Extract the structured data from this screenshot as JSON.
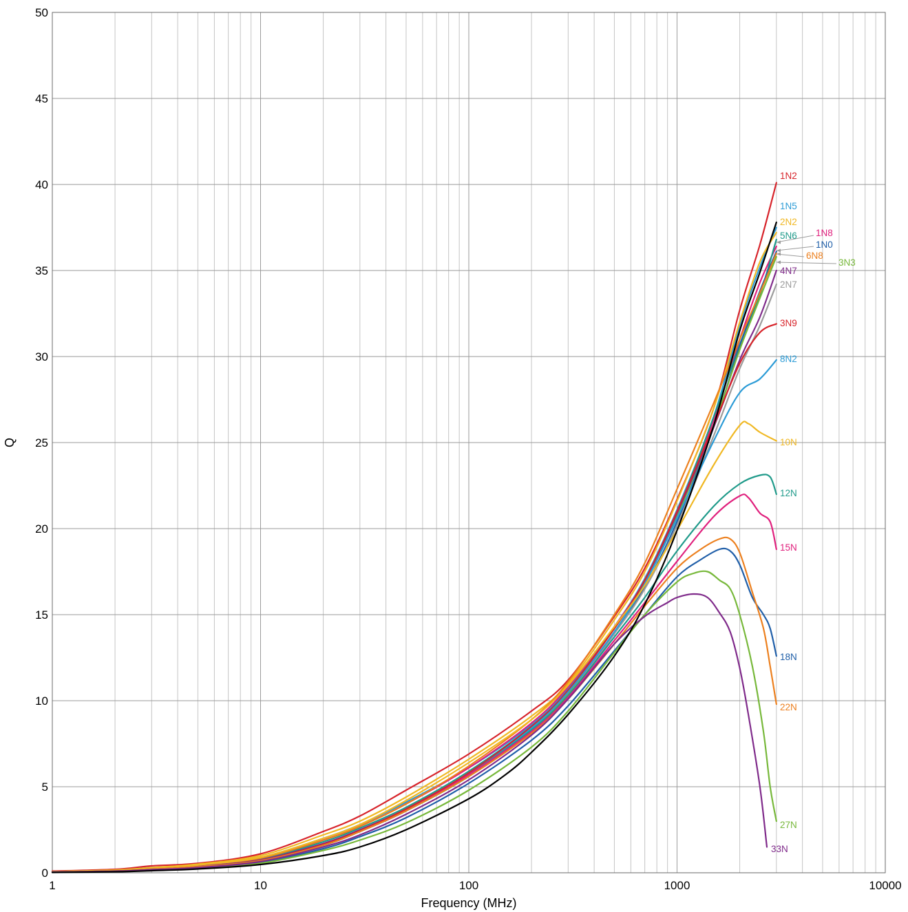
{
  "chart_data": {
    "type": "line",
    "xlabel": "Frequency (MHz)",
    "ylabel": "Q",
    "x_scale": "log",
    "xlim": [
      1,
      10000
    ],
    "ylim": [
      0,
      50
    ],
    "x_ticks": [
      1,
      10,
      100,
      1000,
      10000
    ],
    "x_tick_labels": [
      "1",
      "10",
      "100",
      "1000",
      "10000"
    ],
    "y_ticks": [
      0,
      5,
      10,
      15,
      20,
      25,
      30,
      35,
      40,
      45,
      50
    ],
    "y_tick_labels": [
      "0",
      "5",
      "10",
      "15",
      "20",
      "25",
      "30",
      "35",
      "40",
      "45",
      "50"
    ],
    "grid": true,
    "legend": "inline-right",
    "series": [
      {
        "name": "1N2",
        "color": "#d7232a",
        "x": [
          1,
          2,
          3,
          5,
          10,
          20,
          30,
          50,
          100,
          200,
          300,
          500,
          700,
          1000,
          1500,
          2000,
          2500,
          3000
        ],
        "values": [
          0.1,
          0.2,
          0.4,
          0.55,
          1.1,
          2.4,
          3.3,
          4.8,
          6.9,
          9.4,
          11.2,
          14.9,
          17.7,
          21.7,
          27.0,
          32.7,
          36.5,
          40.1
        ]
      },
      {
        "name": "1N5",
        "color": "#2b9bd6",
        "x": [
          1,
          2,
          3,
          5,
          10,
          20,
          30,
          50,
          100,
          200,
          300,
          500,
          700,
          1000,
          1500,
          2000,
          2500,
          3000
        ],
        "values": [
          0.06,
          0.15,
          0.3,
          0.45,
          0.9,
          2.0,
          2.8,
          4.1,
          6.1,
          8.6,
          10.7,
          14.3,
          17.1,
          21.1,
          26.5,
          31.8,
          35.2,
          37.5
        ]
      },
      {
        "name": "2N2",
        "color": "#f0b823",
        "x": [
          1,
          2,
          3,
          5,
          10,
          20,
          30,
          50,
          100,
          200,
          300,
          500,
          700,
          1000,
          1500,
          2000,
          2500,
          3000
        ],
        "values": [
          0.07,
          0.16,
          0.3,
          0.5,
          1.0,
          2.2,
          3.0,
          4.4,
          6.6,
          9.1,
          11.0,
          14.7,
          17.5,
          21.6,
          27.0,
          32.0,
          35.5,
          37.2
        ]
      },
      {
        "name": "1N8",
        "color": "#e0207d",
        "x": [
          1,
          2,
          3,
          5,
          10,
          20,
          30,
          50,
          100,
          200,
          300,
          500,
          700,
          1000,
          1500,
          2000,
          2500,
          3000
        ],
        "values": [
          0.05,
          0.13,
          0.25,
          0.42,
          0.85,
          1.9,
          2.7,
          4.0,
          6.1,
          8.7,
          10.8,
          14.3,
          17.0,
          20.9,
          26.3,
          31.0,
          34.3,
          36.4
        ]
      },
      {
        "name": "5N6",
        "color": "#1f9a8a",
        "x": [
          1,
          2,
          3,
          5,
          10,
          20,
          30,
          50,
          100,
          200,
          300,
          500,
          700,
          1000,
          1500,
          2000,
          2500,
          3000
        ],
        "values": [
          0.05,
          0.12,
          0.24,
          0.4,
          0.8,
          1.8,
          2.6,
          3.8,
          5.9,
          8.5,
          10.6,
          14.2,
          16.9,
          20.9,
          26.5,
          30.7,
          33.6,
          36.8
        ]
      },
      {
        "name": "1N0",
        "color": "#1f5ea8",
        "x": [
          1,
          2,
          3,
          5,
          10,
          20,
          30,
          50,
          100,
          200,
          300,
          500,
          700,
          1000,
          1500,
          2000,
          2500,
          3000
        ],
        "values": [
          0.04,
          0.1,
          0.2,
          0.35,
          0.7,
          1.6,
          2.4,
          3.6,
          5.6,
          8.2,
          10.3,
          13.9,
          16.6,
          20.4,
          25.9,
          30.6,
          33.8,
          36.1
        ]
      },
      {
        "name": "6N8",
        "color": "#ec7f1d",
        "x": [
          1,
          2,
          3,
          5,
          10,
          20,
          30,
          50,
          100,
          200,
          300,
          500,
          700,
          1000,
          1500,
          2000,
          2500,
          3000
        ],
        "values": [
          0.05,
          0.13,
          0.25,
          0.42,
          0.85,
          1.9,
          2.7,
          4.0,
          6.2,
          8.9,
          11.1,
          15.0,
          18.0,
          22.3,
          27.3,
          31.0,
          33.7,
          36.0
        ]
      },
      {
        "name": "3N3",
        "color": "#77b83a",
        "x": [
          1,
          2,
          3,
          5,
          10,
          20,
          30,
          50,
          100,
          200,
          300,
          500,
          700,
          1000,
          1500,
          2000,
          2500,
          3000
        ],
        "values": [
          0.04,
          0.1,
          0.2,
          0.35,
          0.7,
          1.6,
          2.4,
          3.6,
          5.6,
          8.3,
          10.4,
          14.0,
          16.8,
          20.7,
          26.0,
          30.4,
          33.4,
          35.8
        ]
      },
      {
        "name": "4N7",
        "color": "#7f2a8a",
        "x": [
          1,
          2,
          3,
          5,
          10,
          20,
          30,
          50,
          100,
          200,
          300,
          500,
          700,
          1000,
          1500,
          2000,
          2500,
          3000
        ],
        "values": [
          0.05,
          0.12,
          0.22,
          0.38,
          0.75,
          1.7,
          2.5,
          3.7,
          5.8,
          8.5,
          10.6,
          14.2,
          17.0,
          20.9,
          25.9,
          29.8,
          32.3,
          35.0
        ]
      },
      {
        "name": "2N7",
        "color": "#9b9b9b",
        "x": [
          1,
          2,
          3,
          5,
          10,
          20,
          30,
          50,
          100,
          200,
          300,
          500,
          700,
          1000,
          1500,
          2000,
          2500,
          3000
        ],
        "values": [
          0.04,
          0.1,
          0.2,
          0.35,
          0.7,
          1.6,
          2.4,
          3.6,
          5.6,
          8.2,
          10.3,
          13.9,
          16.5,
          20.2,
          25.4,
          29.3,
          31.8,
          34.2
        ]
      },
      {
        "name": "3N9",
        "color": "#d7232a",
        "x": [
          1,
          2,
          3,
          5,
          10,
          20,
          30,
          50,
          100,
          200,
          300,
          500,
          700,
          1000,
          1500,
          2000,
          2500,
          3000
        ],
        "values": [
          0.04,
          0.1,
          0.2,
          0.35,
          0.72,
          1.65,
          2.45,
          3.7,
          5.8,
          8.5,
          10.6,
          14.2,
          17.0,
          21.0,
          26.0,
          29.6,
          31.4,
          31.9
        ]
      },
      {
        "name": "8N2",
        "color": "#2b9bd6",
        "x": [
          1,
          2,
          3,
          5,
          10,
          20,
          30,
          50,
          100,
          200,
          300,
          500,
          700,
          1000,
          1500,
          2000,
          2500,
          3000
        ],
        "values": [
          0.04,
          0.1,
          0.2,
          0.35,
          0.7,
          1.6,
          2.4,
          3.6,
          5.7,
          8.4,
          10.5,
          14.0,
          16.8,
          20.6,
          25.1,
          27.9,
          28.7,
          29.8
        ]
      },
      {
        "name": "10N",
        "color": "#f0b823",
        "x": [
          1,
          2,
          3,
          5,
          10,
          20,
          30,
          50,
          100,
          200,
          300,
          500,
          700,
          1000,
          1500,
          2000,
          2200,
          2500,
          3000
        ],
        "values": [
          0.05,
          0.14,
          0.27,
          0.45,
          0.9,
          2.0,
          2.8,
          4.2,
          6.4,
          8.9,
          10.9,
          14.3,
          16.7,
          19.9,
          23.7,
          26.0,
          26.1,
          25.6,
          25.1
        ]
      },
      {
        "name": "12N",
        "color": "#1f9a8a",
        "x": [
          1,
          2,
          3,
          5,
          10,
          20,
          30,
          50,
          100,
          200,
          300,
          500,
          700,
          1000,
          1500,
          2000,
          2500,
          2800,
          3000
        ],
        "values": [
          0.04,
          0.1,
          0.2,
          0.35,
          0.7,
          1.6,
          2.4,
          3.6,
          5.7,
          8.3,
          10.3,
          13.7,
          16.0,
          18.7,
          21.3,
          22.6,
          23.1,
          23.0,
          22.0
        ]
      },
      {
        "name": "15N",
        "color": "#e0207d",
        "x": [
          1,
          2,
          3,
          5,
          10,
          20,
          30,
          50,
          100,
          200,
          300,
          500,
          700,
          1000,
          1500,
          2000,
          2200,
          2500,
          2800,
          3000
        ],
        "values": [
          0.04,
          0.1,
          0.2,
          0.35,
          0.7,
          1.6,
          2.4,
          3.6,
          5.7,
          8.2,
          10.2,
          13.5,
          15.7,
          18.1,
          20.7,
          21.9,
          21.8,
          20.9,
          20.4,
          18.8
        ]
      },
      {
        "name": "18N",
        "color": "#1f5ea8",
        "x": [
          1,
          2,
          3,
          5,
          10,
          20,
          30,
          50,
          100,
          200,
          300,
          500,
          700,
          1000,
          1300,
          1600,
          1800,
          2000,
          2300,
          2600,
          2800,
          3000
        ],
        "values": [
          0.03,
          0.08,
          0.16,
          0.28,
          0.6,
          1.4,
          2.1,
          3.2,
          5.2,
          7.7,
          9.7,
          12.9,
          15.0,
          17.2,
          18.2,
          18.8,
          18.7,
          17.9,
          16.0,
          15.0,
          14.2,
          12.6
        ]
      },
      {
        "name": "22N",
        "color": "#ec7f1d",
        "x": [
          1,
          2,
          3,
          5,
          10,
          20,
          30,
          50,
          100,
          200,
          300,
          500,
          700,
          1000,
          1300,
          1600,
          1800,
          2000,
          2300,
          2600,
          2800,
          3000
        ],
        "values": [
          0.04,
          0.1,
          0.2,
          0.35,
          0.7,
          1.6,
          2.4,
          3.6,
          5.6,
          8.1,
          10.1,
          13.3,
          15.5,
          17.7,
          18.8,
          19.4,
          19.4,
          18.6,
          16.3,
          14.2,
          12.0,
          9.8
        ]
      },
      {
        "name": "27N",
        "color": "#77b83a",
        "x": [
          1,
          2,
          3,
          5,
          10,
          20,
          30,
          50,
          100,
          200,
          300,
          500,
          700,
          1000,
          1200,
          1400,
          1600,
          1800,
          2000,
          2300,
          2600,
          2800,
          3000
        ],
        "values": [
          0.03,
          0.07,
          0.14,
          0.25,
          0.55,
          1.3,
          1.9,
          2.9,
          4.8,
          7.3,
          9.4,
          12.8,
          15.0,
          16.9,
          17.4,
          17.5,
          17.0,
          16.5,
          15.0,
          12.0,
          8.2,
          5.0,
          3.0
        ]
      },
      {
        "name": "33N",
        "color": "#7f2a8a",
        "x": [
          1,
          2,
          3,
          5,
          10,
          20,
          30,
          50,
          100,
          200,
          300,
          500,
          700,
          900,
          1000,
          1200,
          1400,
          1600,
          1800,
          2000,
          2200,
          2500,
          2700
        ],
        "values": [
          0.04,
          0.09,
          0.18,
          0.3,
          0.65,
          1.5,
          2.2,
          3.4,
          5.4,
          8.0,
          10.1,
          13.3,
          14.9,
          15.7,
          16.0,
          16.2,
          16.0,
          15.1,
          14.0,
          11.9,
          9.2,
          5.0,
          1.5
        ]
      },
      {
        "name": "",
        "color": "#000000",
        "x": [
          1,
          2,
          3,
          5,
          10,
          20,
          30,
          50,
          100,
          150,
          200,
          300,
          500,
          700,
          1000,
          1500,
          2000,
          2500,
          3000
        ],
        "values": [
          0.02,
          0.06,
          0.12,
          0.22,
          0.48,
          1.0,
          1.5,
          2.5,
          4.3,
          5.7,
          7.0,
          9.2,
          12.6,
          15.6,
          19.9,
          26.0,
          31.5,
          34.9,
          37.8
        ]
      }
    ],
    "labels": [
      {
        "text": "1N2",
        "color": "#d7232a"
      },
      {
        "text": "1N5",
        "color": "#2b9bd6"
      },
      {
        "text": "2N2",
        "color": "#f0b823"
      },
      {
        "text": "5N6",
        "color": "#1f9a8a"
      },
      {
        "text": "1N8",
        "color": "#e0207d"
      },
      {
        "text": "1N0",
        "color": "#1f5ea8"
      },
      {
        "text": "6N8",
        "color": "#ec7f1d"
      },
      {
        "text": "3N3",
        "color": "#77b83a"
      },
      {
        "text": "4N7",
        "color": "#7f2a8a"
      },
      {
        "text": "2N7",
        "color": "#9b9b9b"
      },
      {
        "text": "3N9",
        "color": "#d7232a"
      },
      {
        "text": "8N2",
        "color": "#2b9bd6"
      },
      {
        "text": "10N",
        "color": "#f0b823"
      },
      {
        "text": "12N",
        "color": "#1f9a8a"
      },
      {
        "text": "15N",
        "color": "#e0207d"
      },
      {
        "text": "18N",
        "color": "#1f5ea8"
      },
      {
        "text": "22N",
        "color": "#ec7f1d"
      },
      {
        "text": "27N",
        "color": "#77b83a"
      },
      {
        "text": "33N",
        "color": "#7f2a8a"
      }
    ]
  }
}
